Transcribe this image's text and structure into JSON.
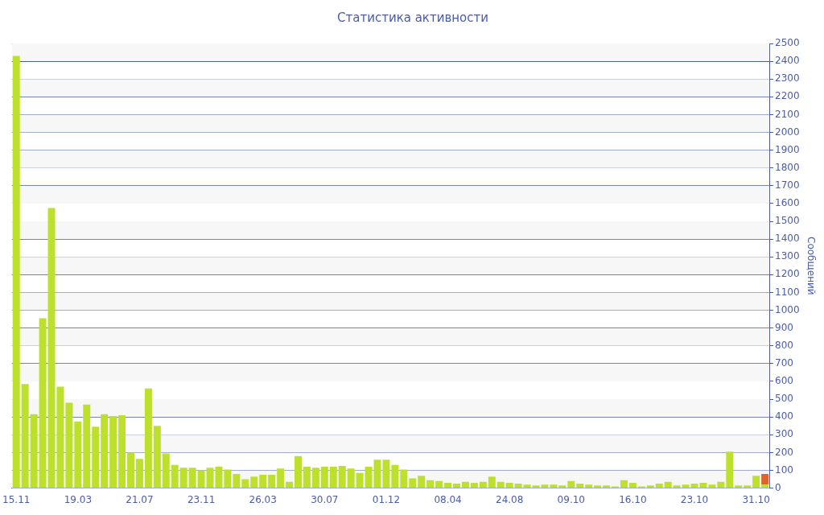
{
  "chart_data": {
    "type": "bar",
    "title": "Статистика активности",
    "ylabel": "Сообщений",
    "stacked": true,
    "legend": false,
    "grid": "y",
    "categories": [
      "15.11",
      null,
      null,
      null,
      null,
      null,
      null,
      "19.03",
      null,
      null,
      null,
      null,
      null,
      null,
      "21.07",
      null,
      null,
      null,
      null,
      null,
      null,
      "23.11",
      null,
      null,
      null,
      null,
      null,
      null,
      "26.03",
      null,
      null,
      null,
      null,
      null,
      null,
      "30.07",
      null,
      null,
      null,
      null,
      null,
      null,
      "01.12",
      null,
      null,
      null,
      null,
      null,
      null,
      "08.04",
      null,
      null,
      null,
      null,
      null,
      null,
      "24.08",
      null,
      null,
      null,
      null,
      null,
      null,
      "09.10",
      null,
      null,
      null,
      null,
      null,
      null,
      "16.10",
      null,
      null,
      null,
      null,
      null,
      null,
      "23.10",
      null,
      null,
      null,
      null,
      null,
      null,
      "31.10",
      null
    ],
    "ylim": [
      0,
      2500
    ],
    "yticks": [
      0,
      100,
      200,
      300,
      400,
      500,
      600,
      700,
      800,
      900,
      1000,
      1100,
      1200,
      1300,
      1400,
      1500,
      1600,
      1700,
      1800,
      1900,
      2000,
      2100,
      2200,
      2300,
      2400,
      2500
    ],
    "series": [
      {
        "color": "#bde02d",
        "values": [
          2430,
          585,
          415,
          955,
          1575,
          570,
          480,
          375,
          470,
          345,
          415,
          405,
          410,
          200,
          165,
          560,
          350,
          195,
          130,
          115,
          115,
          100,
          115,
          120,
          105,
          80,
          50,
          65,
          75,
          75,
          110,
          35,
          180,
          120,
          115,
          120,
          120,
          125,
          110,
          85,
          120,
          160,
          160,
          130,
          105,
          55,
          70,
          45,
          40,
          30,
          25,
          35,
          30,
          35,
          65,
          35,
          30,
          25,
          20,
          15,
          20,
          20,
          15,
          40,
          25,
          20,
          15,
          15,
          10,
          45,
          30,
          10,
          15,
          25,
          35,
          15,
          20,
          25,
          30,
          20,
          35,
          205,
          15,
          15,
          70,
          20
        ]
      },
      {
        "color": "#e0622d",
        "values": [
          null,
          null,
          null,
          null,
          null,
          null,
          null,
          null,
          null,
          null,
          null,
          null,
          null,
          null,
          null,
          null,
          null,
          null,
          null,
          null,
          null,
          null,
          null,
          null,
          null,
          null,
          null,
          null,
          null,
          null,
          null,
          null,
          null,
          null,
          null,
          null,
          null,
          null,
          null,
          null,
          null,
          null,
          null,
          null,
          null,
          null,
          null,
          null,
          null,
          null,
          null,
          null,
          null,
          null,
          null,
          null,
          null,
          null,
          null,
          null,
          null,
          null,
          null,
          null,
          null,
          null,
          null,
          null,
          null,
          null,
          null,
          null,
          null,
          null,
          null,
          null,
          null,
          null,
          null,
          null,
          null,
          null,
          null,
          null,
          null,
          60
        ]
      }
    ]
  }
}
